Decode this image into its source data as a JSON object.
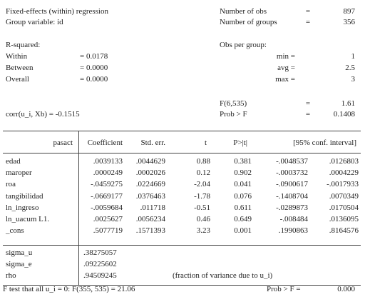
{
  "header": {
    "title": "Fixed-effects (within) regression",
    "group_variable": "Group variable: id",
    "number_of_obs": {
      "label": "Number of obs",
      "eq": "=",
      "value": "897"
    },
    "number_of_groups": {
      "label": "Number of groups",
      "eq": "=",
      "value": "356"
    },
    "r_squared": {
      "label": "R-squared:",
      "rows": [
        {
          "label": "Within",
          "value": "= 0.0178"
        },
        {
          "label": "Between",
          "value": "= 0.0000"
        },
        {
          "label": "Overall",
          "value": "= 0.0000"
        }
      ]
    },
    "obs_per_group": {
      "label": "Obs per group:",
      "rows": [
        {
          "label": "min =",
          "value": "1"
        },
        {
          "label": "avg =",
          "value": "2.5"
        },
        {
          "label": "max =",
          "value": "3"
        }
      ]
    },
    "f_stat": {
      "label": "F(6,535)",
      "eq": "=",
      "value": "1.61"
    },
    "corr": "corr(u_i, Xb) = -0.1515",
    "prob_f": {
      "label": "Prob > F",
      "eq": "=",
      "value": "0.1408"
    }
  },
  "table": {
    "columns": [
      "pasact",
      "Coefficient",
      "Std. err.",
      "t",
      "P>|t|",
      "[95% conf. interval]"
    ],
    "rows": [
      [
        "edad",
        ".0039133",
        ".0044629",
        "0.88",
        "0.381",
        "-.0048537",
        ".0126803"
      ],
      [
        "maroper",
        ".0000249",
        ".0002026",
        "0.12",
        "0.902",
        "-.0003732",
        ".0004229"
      ],
      [
        "roa",
        "-.0459275",
        ".0224669",
        "-2.04",
        "0.041",
        "-.0900617",
        "-.0017933"
      ],
      [
        "tangibilidad",
        "-.0669177",
        ".0376463",
        "-1.78",
        "0.076",
        "-.1408704",
        ".0070349"
      ],
      [
        "ln_ingreso",
        "-.0059684",
        ".011718",
        "-0.51",
        "0.611",
        "-.0289873",
        ".0170504"
      ],
      [
        "ln_uacum L1.",
        ".0025627",
        ".0056234",
        "0.46",
        "0.649",
        "-.008484",
        ".0136095"
      ],
      [
        "_cons",
        ".5077719",
        ".1571393",
        "3.23",
        "0.001",
        ".1990863",
        ".8164576"
      ]
    ],
    "variance": [
      [
        "sigma_u",
        ".38275057"
      ],
      [
        "sigma_e",
        ".09225602"
      ],
      [
        "rho",
        ".94509245",
        "(fraction of variance due to u_i)"
      ]
    ],
    "footer": {
      "test": "F test that all u_i = 0: F(355, 535) = 21.06",
      "prob_label": "Prob > F =",
      "prob_value": "0.000"
    }
  }
}
